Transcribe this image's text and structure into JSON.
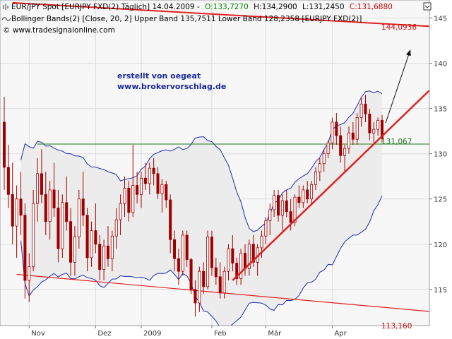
{
  "header": {
    "line1_prefix": "EUR/JPY Spot [EURJPY FXD(2)  Täglich] 14.04.2009 -",
    "open": "O:133,7270",
    "high": "H:134,2900",
    "low": "L:131,2450",
    "close": "C:131,6880",
    "line2": "Bollinger Bands(2) [Close, 20, 2] Upper Band 135,7511 Lower Band 128,2358 [EURJPY FXD(2)]",
    "copyright": "© www.tradesignalonline.com"
  },
  "annotation": {
    "line1": "erstellt von oegeat",
    "line2": "www.brokervorschlag.de"
  },
  "level_labels": {
    "upper_line": "144,0936",
    "horizontal": "131,067",
    "lower_line": "113,160"
  },
  "icons": {
    "chart_icon": "chart-icon",
    "indicator_icon": "wave-icon",
    "settings": "settings-icon"
  },
  "colors": {
    "background": "#f7f7f7",
    "band_fill": "#ececec",
    "band_line": "#1c2bb0",
    "candle": "#a00000",
    "trend": "#e02020",
    "horizontal": "#1b7a1b",
    "grid": "#dddddd"
  },
  "chart_data": {
    "type": "candlestick",
    "x_labels": [
      "Nov",
      "Dez",
      "2009",
      "Feb",
      "Mär",
      "Apr"
    ],
    "y_ticks": [
      115,
      120,
      125,
      130,
      135,
      140,
      145
    ],
    "ylim": [
      111,
      147
    ],
    "grid": true,
    "series": [
      {
        "name": "EUR/JPY",
        "ohlc": [
          [
            133.5,
            136.3,
            126.0,
            128.5
          ],
          [
            128.5,
            131.0,
            124.0,
            125.5
          ],
          [
            125.5,
            129.0,
            120.0,
            122.0
          ],
          [
            122.0,
            126.5,
            118.5,
            125.0
          ],
          [
            125.0,
            128.0,
            121.0,
            123.2
          ],
          [
            123.2,
            124.5,
            114.0,
            116.0
          ],
          [
            116.0,
            119.0,
            113.6,
            117.5
          ],
          [
            117.5,
            126.0,
            117.0,
            124.5
          ],
          [
            124.5,
            129.5,
            122.5,
            127.8
          ],
          [
            127.8,
            130.5,
            124.5,
            125.5
          ],
          [
            125.5,
            128.0,
            121.0,
            122.5
          ],
          [
            122.5,
            127.0,
            120.5,
            126.0
          ],
          [
            126.0,
            129.0,
            123.0,
            124.0
          ],
          [
            124.0,
            126.0,
            118.0,
            119.5
          ],
          [
            119.5,
            125.5,
            118.5,
            124.6
          ],
          [
            124.6,
            127.5,
            121.5,
            122.5
          ],
          [
            122.5,
            124.0,
            116.5,
            118.0
          ],
          [
            118.0,
            122.0,
            116.5,
            120.8
          ],
          [
            120.8,
            126.0,
            119.5,
            125.0
          ],
          [
            125.0,
            128.0,
            122.0,
            123.2
          ],
          [
            123.2,
            124.0,
            117.0,
            118.5
          ],
          [
            118.5,
            122.5,
            117.5,
            121.5
          ],
          [
            121.5,
            124.5,
            119.0,
            120.0
          ],
          [
            120.0,
            121.0,
            116.0,
            117.2
          ],
          [
            117.2,
            120.5,
            116.0,
            119.8
          ],
          [
            119.8,
            122.0,
            117.5,
            118.4
          ],
          [
            118.4,
            121.5,
            117.0,
            120.9
          ],
          [
            120.9,
            124.0,
            119.5,
            122.7
          ],
          [
            122.7,
            125.5,
            121.0,
            124.5
          ],
          [
            124.5,
            127.5,
            123.0,
            126.2
          ],
          [
            126.2,
            127.0,
            122.5,
            123.5
          ],
          [
            123.5,
            131.0,
            123.0,
            126.5
          ],
          [
            126.5,
            128.0,
            124.5,
            125.5
          ],
          [
            125.5,
            128.0,
            124.0,
            127.3
          ],
          [
            127.3,
            129.0,
            126.0,
            126.7
          ],
          [
            126.7,
            129.0,
            125.5,
            128.4
          ],
          [
            128.4,
            129.5,
            126.5,
            127.8
          ],
          [
            127.8,
            128.5,
            125.0,
            125.6
          ],
          [
            125.6,
            127.2,
            123.5,
            126.6
          ],
          [
            126.6,
            127.0,
            124.0,
            124.9
          ],
          [
            124.9,
            125.5,
            119.0,
            120.5
          ],
          [
            120.5,
            121.5,
            117.0,
            118.4
          ],
          [
            118.4,
            119.5,
            115.5,
            117.0
          ],
          [
            117.0,
            121.5,
            116.5,
            121.0
          ],
          [
            121.0,
            121.5,
            117.5,
            118.3
          ],
          [
            118.3,
            118.5,
            114.5,
            115.0
          ],
          [
            115.0,
            116.0,
            112.0,
            113.5
          ],
          [
            113.5,
            117.5,
            112.5,
            117.0
          ],
          [
            117.0,
            118.0,
            114.5,
            115.3
          ],
          [
            115.3,
            121.5,
            115.0,
            120.8
          ],
          [
            120.8,
            121.5,
            116.5,
            117.4
          ],
          [
            117.4,
            118.5,
            115.5,
            116.4
          ],
          [
            116.4,
            118.0,
            114.0,
            114.6
          ],
          [
            114.6,
            117.5,
            114.0,
            117.0
          ],
          [
            117.0,
            120.0,
            116.0,
            119.5
          ],
          [
            119.5,
            121.0,
            117.0,
            117.9
          ],
          [
            117.9,
            118.5,
            115.5,
            116.2
          ],
          [
            116.2,
            119.5,
            115.5,
            119.0
          ],
          [
            119.0,
            120.0,
            116.5,
            117.3
          ],
          [
            117.3,
            120.5,
            116.5,
            120.0
          ],
          [
            120.0,
            121.0,
            117.5,
            118.0
          ],
          [
            118.0,
            120.0,
            116.5,
            119.6
          ],
          [
            119.6,
            121.5,
            118.5,
            120.9
          ],
          [
            120.9,
            123.0,
            120.0,
            122.6
          ],
          [
            122.6,
            124.5,
            121.0,
            123.8
          ],
          [
            123.8,
            126.0,
            123.0,
            125.4
          ],
          [
            125.4,
            126.0,
            122.5,
            123.2
          ],
          [
            123.2,
            125.5,
            121.5,
            124.8
          ],
          [
            124.8,
            126.0,
            123.0,
            123.6
          ],
          [
            123.6,
            125.0,
            121.5,
            122.4
          ],
          [
            122.4,
            125.5,
            122.0,
            125.2
          ],
          [
            125.2,
            126.5,
            124.0,
            124.6
          ],
          [
            124.6,
            126.5,
            124.0,
            126.0
          ],
          [
            126.0,
            127.0,
            124.5,
            125.0
          ],
          [
            125.0,
            127.0,
            124.5,
            126.6
          ],
          [
            126.6,
            128.5,
            126.0,
            128.0
          ],
          [
            128.0,
            129.5,
            127.0,
            128.9
          ],
          [
            128.9,
            130.5,
            128.0,
            130.0
          ],
          [
            130.0,
            131.5,
            129.5,
            131.2
          ],
          [
            131.2,
            134.0,
            130.5,
            133.5
          ],
          [
            133.5,
            134.5,
            131.0,
            132.0
          ],
          [
            132.0,
            133.0,
            129.0,
            129.8
          ],
          [
            129.8,
            131.0,
            128.0,
            130.6
          ],
          [
            130.6,
            133.0,
            130.0,
            132.3
          ],
          [
            132.3,
            133.5,
            131.0,
            131.6
          ],
          [
            131.6,
            134.5,
            131.0,
            134.0
          ],
          [
            134.0,
            136.3,
            133.0,
            135.5
          ],
          [
            135.5,
            136.5,
            133.5,
            134.4
          ],
          [
            134.4,
            135.0,
            131.5,
            132.3
          ],
          [
            132.3,
            133.5,
            131.0,
            132.7
          ],
          [
            132.7,
            134.0,
            132.0,
            133.7
          ],
          [
            133.7,
            134.29,
            131.245,
            131.688
          ]
        ]
      }
    ]
  }
}
